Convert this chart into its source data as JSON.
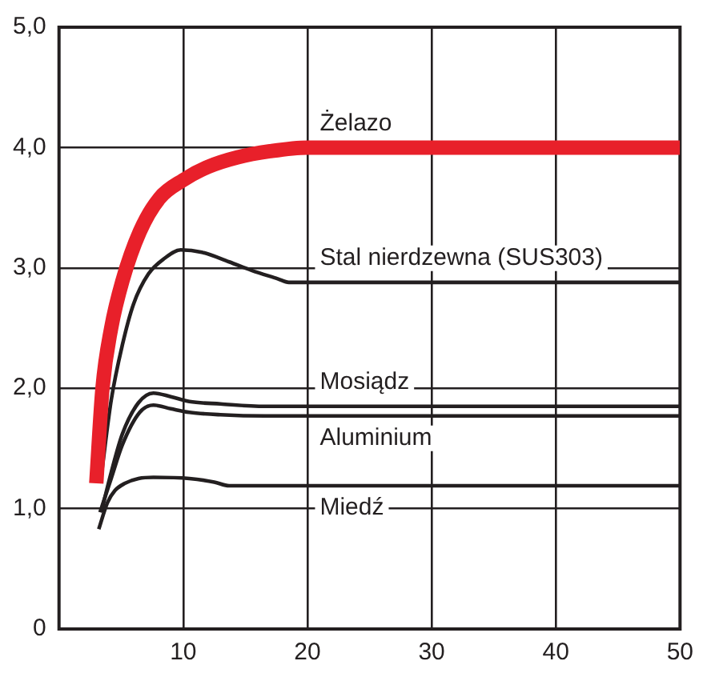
{
  "chart_data": {
    "type": "line",
    "xlim": [
      0,
      50
    ],
    "ylim": [
      0,
      5
    ],
    "xticks": [
      {
        "value": 0,
        "label": null
      },
      10,
      20,
      30,
      40,
      50
    ],
    "yticks": [
      {
        "value": 0,
        "label": "0"
      },
      {
        "value": 1,
        "label": "1,0"
      },
      {
        "value": 2,
        "label": "2,0"
      },
      {
        "value": 3,
        "label": "3,0"
      },
      {
        "value": 4,
        "label": "4,0"
      },
      {
        "value": 5,
        "label": "5,0"
      }
    ],
    "grid": true,
    "legend": false,
    "marker": "none",
    "line_style": "solid",
    "series": [
      {
        "name": "Żelazo",
        "color": "#e8202a",
        "x": [
          3.0,
          3.5,
          4.2,
          5.1,
          6.5,
          8.1,
          10,
          12,
          14.4,
          17,
          20,
          50
        ],
        "values": [
          1.21,
          2.0,
          2.5,
          2.89,
          3.3,
          3.58,
          3.73,
          3.84,
          3.92,
          3.97,
          4.0,
          4.0
        ]
      },
      {
        "name": "Stal nierdzewna (SUS303)",
        "color": "#231f20",
        "x": [
          3.4,
          4.2,
          5.1,
          6.0,
          7.2,
          8.5,
          9.8,
          11.5,
          13.7,
          15.5,
          17.6,
          18.5,
          50
        ],
        "values": [
          1.27,
          1.9,
          2.36,
          2.7,
          2.95,
          3.08,
          3.15,
          3.13,
          3.05,
          2.98,
          2.91,
          2.88,
          2.88
        ]
      },
      {
        "name": "Mosiądz",
        "color": "#231f20",
        "x": [
          3.4,
          4.2,
          5.1,
          6.4,
          7.6,
          9,
          10.5,
          13,
          16.6,
          50
        ],
        "values": [
          0.97,
          1.3,
          1.62,
          1.88,
          1.96,
          1.93,
          1.89,
          1.87,
          1.85,
          1.85
        ]
      },
      {
        "name": "Aluminium",
        "color": "#231f20",
        "x": [
          3.3,
          4.2,
          5.1,
          6.5,
          7.6,
          9,
          10.5,
          13,
          16.6,
          50
        ],
        "values": [
          0.97,
          1.25,
          1.53,
          1.8,
          1.86,
          1.83,
          1.8,
          1.78,
          1.77,
          1.77
        ]
      },
      {
        "name": "Miedź",
        "color": "#231f20",
        "x": [
          3.2,
          3.9,
          4.5,
          5.3,
          6.4,
          7.6,
          10.5,
          12.5,
          13.7,
          50
        ],
        "values": [
          0.83,
          1.05,
          1.15,
          1.21,
          1.25,
          1.26,
          1.25,
          1.22,
          1.19,
          1.19
        ]
      }
    ]
  }
}
